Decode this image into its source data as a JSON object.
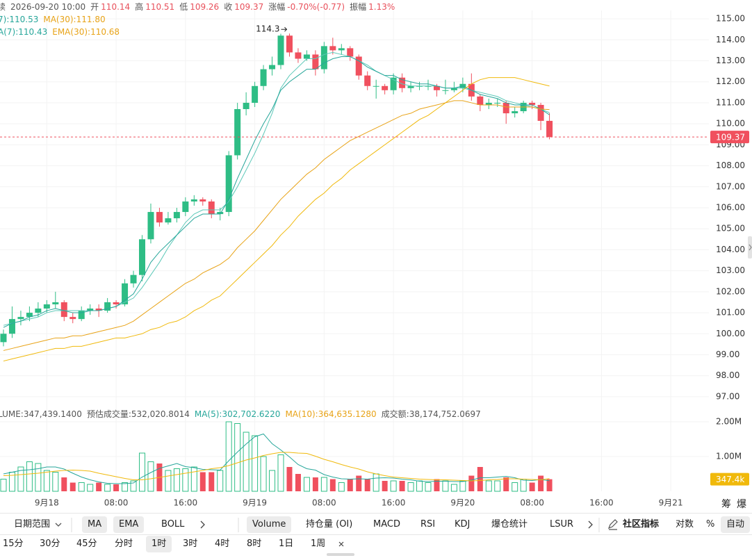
{
  "header": {
    "prefix": "续",
    "time": "2026-09-20 10:00",
    "fields": [
      {
        "label": "开",
        "value": "110.14"
      },
      {
        "label": "高",
        "value": "110.51"
      },
      {
        "label": "低",
        "value": "109.26"
      },
      {
        "label": "收",
        "value": "109.37"
      },
      {
        "label": "涨幅",
        "value": "-0.70%(-0.77)"
      },
      {
        "label": "振幅",
        "value": "1.13%"
      }
    ]
  },
  "chart_data": [
    {
      "type": "candlestick",
      "up_color": "#2ebd85",
      "down_color": "#f0505e",
      "legend": [
        [
          {
            "text": "7):110.53",
            "color": "#26a69a"
          },
          {
            "text": "MA(30):111.80",
            "color": "#e8a317"
          }
        ],
        [
          {
            "text": "A(7):110.43",
            "color": "#26a69a"
          },
          {
            "text": "EMA(30):110.68",
            "color": "#e8a317"
          }
        ]
      ],
      "open": [
        99.6,
        100.0,
        100.7,
        100.8,
        101.0,
        101.2,
        101.4,
        101.5,
        100.8,
        100.7,
        101.1,
        101.2,
        101.1,
        101.5,
        101.4,
        102.4,
        102.8,
        104.5,
        105.8,
        105.3,
        105.5,
        105.8,
        106.3,
        106.4,
        106.3,
        105.7,
        105.8,
        108.5,
        110.7,
        111.0,
        111.8,
        112.6,
        112.8,
        114.2,
        113.4,
        113.1,
        113.3,
        112.6,
        113.7,
        113.5,
        113.6,
        113.2,
        112.3,
        111.8,
        111.8,
        111.6,
        112.2,
        111.7,
        111.8,
        111.8,
        111.8,
        111.6,
        111.6,
        111.7,
        111.9,
        111.3,
        110.9,
        111.0,
        111.0,
        110.5,
        110.6,
        111.0,
        110.9,
        110.14
      ],
      "high": [
        100.2,
        101.3,
        101.1,
        101.3,
        101.5,
        101.6,
        102.0,
        101.6,
        101.0,
        101.3,
        101.4,
        101.4,
        101.7,
        101.6,
        102.6,
        103.0,
        104.7,
        106.2,
        106.0,
        105.8,
        106.0,
        106.5,
        106.6,
        106.5,
        106.4,
        106.0,
        108.7,
        111.0,
        111.5,
        112.0,
        112.8,
        113.2,
        114.29,
        114.3,
        113.6,
        113.5,
        113.5,
        113.9,
        114.1,
        113.8,
        113.7,
        113.3,
        112.5,
        112.1,
        111.9,
        112.4,
        112.4,
        112.0,
        112.0,
        112.1,
        111.9,
        112.1,
        112.0,
        112.2,
        112.4,
        111.4,
        111.2,
        111.2,
        111.1,
        110.8,
        111.1,
        111.1,
        111.0,
        110.51
      ],
      "low": [
        99.4,
        99.8,
        100.4,
        100.6,
        100.8,
        101.0,
        101.2,
        100.6,
        100.5,
        100.6,
        100.9,
        100.8,
        101.0,
        101.2,
        101.3,
        102.2,
        102.5,
        104.3,
        105.1,
        105.2,
        105.3,
        105.6,
        106.1,
        106.1,
        105.5,
        105.4,
        105.6,
        108.3,
        110.4,
        110.8,
        111.6,
        112.3,
        112.6,
        113.2,
        112.9,
        113.0,
        112.3,
        112.4,
        113.3,
        113.3,
        113.0,
        112.1,
        111.6,
        111.2,
        111.4,
        111.4,
        111.5,
        111.5,
        111.6,
        111.6,
        111.3,
        111.4,
        111.5,
        111.5,
        111.1,
        110.6,
        110.7,
        110.8,
        110.0,
        110.3,
        110.5,
        110.7,
        109.7,
        109.26
      ],
      "close": [
        100.0,
        100.7,
        100.8,
        101.0,
        101.2,
        101.4,
        101.5,
        100.8,
        100.7,
        101.1,
        101.2,
        101.1,
        101.5,
        101.4,
        102.4,
        102.8,
        104.5,
        105.8,
        105.3,
        105.5,
        105.8,
        106.3,
        106.4,
        106.3,
        105.7,
        105.8,
        108.5,
        110.7,
        111.0,
        111.8,
        112.6,
        112.8,
        114.2,
        113.4,
        113.1,
        113.3,
        112.6,
        113.7,
        113.5,
        113.6,
        113.2,
        112.3,
        111.8,
        111.8,
        111.6,
        112.2,
        111.7,
        111.8,
        111.8,
        111.8,
        111.6,
        111.6,
        111.7,
        111.9,
        111.3,
        110.9,
        111.0,
        111.0,
        110.5,
        110.6,
        111.0,
        110.9,
        110.14,
        109.37
      ],
      "series": [
        {
          "color": "#5cc8b8",
          "values": [
            100.4,
            100.5,
            100.6,
            100.7,
            100.8,
            101.0,
            101.1,
            101.1,
            101.1,
            101.1,
            101.1,
            101.1,
            101.2,
            101.3,
            101.5,
            101.7,
            102.2,
            102.8,
            103.4,
            104.1,
            104.7,
            105.3,
            105.7,
            105.9,
            105.9,
            105.9,
            106.3,
            107.0,
            107.8,
            108.6,
            109.5,
            110.5,
            111.7,
            112.3,
            112.7,
            113.1,
            113.1,
            113.3,
            113.4,
            113.3,
            113.2,
            113.0,
            112.8,
            112.5,
            112.3,
            112.1,
            111.9,
            111.8,
            111.8,
            111.8,
            111.8,
            111.7,
            111.7,
            111.7,
            111.6,
            111.5,
            111.4,
            111.3,
            111.1,
            111.0,
            110.9,
            110.8,
            110.7,
            110.53
          ]
        },
        {
          "color": "#26a69a",
          "values": [
            100.3,
            100.5,
            100.6,
            100.8,
            100.9,
            101.1,
            101.2,
            101.1,
            101.0,
            101.0,
            101.1,
            101.1,
            101.2,
            101.3,
            101.6,
            101.9,
            102.6,
            103.4,
            103.9,
            104.3,
            104.7,
            105.1,
            105.5,
            105.7,
            105.7,
            105.7,
            106.4,
            107.4,
            108.3,
            109.2,
            110.0,
            110.7,
            111.6,
            112.0,
            112.3,
            112.6,
            112.6,
            112.9,
            113.1,
            113.2,
            113.2,
            113.0,
            112.7,
            112.5,
            112.3,
            112.3,
            112.1,
            112.0,
            111.9,
            111.9,
            111.8,
            111.7,
            111.7,
            111.8,
            111.6,
            111.4,
            111.3,
            111.2,
            111.0,
            110.9,
            110.9,
            110.9,
            110.7,
            110.43
          ]
        },
        {
          "color": "#f0b90b",
          "values": [
            98.7,
            98.8,
            98.9,
            99.0,
            99.1,
            99.2,
            99.3,
            99.3,
            99.4,
            99.4,
            99.5,
            99.6,
            99.7,
            99.8,
            99.8,
            99.9,
            100.0,
            100.2,
            100.3,
            100.5,
            100.6,
            100.8,
            101.1,
            101.3,
            101.6,
            101.8,
            102.2,
            102.6,
            103.0,
            103.4,
            103.8,
            104.2,
            104.7,
            105.1,
            105.6,
            106.0,
            106.4,
            106.7,
            107.1,
            107.4,
            107.8,
            108.1,
            108.4,
            108.7,
            109.0,
            109.3,
            109.6,
            109.9,
            110.2,
            110.4,
            110.7,
            111.0,
            111.3,
            111.6,
            111.9,
            112.1,
            112.2,
            112.2,
            112.2,
            112.2,
            112.1,
            112.0,
            111.9,
            111.8
          ]
        },
        {
          "color": "#e8a317",
          "values": [
            99.2,
            99.3,
            99.4,
            99.5,
            99.6,
            99.7,
            99.8,
            99.8,
            99.9,
            99.9,
            100.0,
            100.1,
            100.2,
            100.3,
            100.4,
            100.6,
            100.9,
            101.2,
            101.5,
            101.8,
            102.1,
            102.4,
            102.6,
            102.9,
            103.1,
            103.3,
            103.6,
            104.1,
            104.5,
            104.9,
            105.4,
            105.9,
            106.4,
            106.8,
            107.2,
            107.6,
            107.9,
            108.3,
            108.6,
            108.9,
            109.2,
            109.4,
            109.6,
            109.8,
            110.0,
            110.2,
            110.4,
            110.5,
            110.7,
            110.8,
            110.9,
            111.0,
            111.1,
            111.1,
            111.0,
            110.9,
            110.9,
            110.9,
            110.8,
            110.8,
            110.8,
            110.8,
            110.7,
            110.68
          ]
        }
      ],
      "xlim": [
        -0.4,
        81.4
      ],
      "xticks": [
        {
          "value": 5,
          "label": "9月18"
        },
        {
          "value": 13,
          "label": "08:00"
        },
        {
          "value": 21,
          "label": "16:00"
        },
        {
          "value": 29,
          "label": "9月19"
        },
        {
          "value": 37,
          "label": "08:00"
        },
        {
          "value": 45,
          "label": "16:00"
        },
        {
          "value": 53,
          "label": "9月20"
        },
        {
          "value": 61,
          "label": "08:00"
        },
        {
          "value": 69,
          "label": "16:00"
        },
        {
          "value": 77,
          "label": "9月21"
        }
      ],
      "ylim": [
        96.6,
        115.4
      ],
      "yticks": [
        {
          "value": 97,
          "label": "97.00"
        },
        {
          "value": 98,
          "label": "98.00"
        },
        {
          "value": 99,
          "label": "99.00"
        },
        {
          "value": 100,
          "label": "100.00"
        },
        {
          "value": 101,
          "label": "101.00"
        },
        {
          "value": 102,
          "label": "102.00"
        },
        {
          "value": 103,
          "label": "103.00"
        },
        {
          "value": 104,
          "label": "104.00"
        },
        {
          "value": 105,
          "label": "105.00"
        },
        {
          "value": 106,
          "label": "106.00"
        },
        {
          "value": 107,
          "label": "107.00"
        },
        {
          "value": 108,
          "label": "108.00"
        },
        {
          "value": 109,
          "label": "109.00"
        },
        {
          "value": 110,
          "label": "110.00"
        },
        {
          "value": 111,
          "label": "111.00"
        },
        {
          "value": 112,
          "label": "112.00"
        },
        {
          "value": 113,
          "label": "113.00"
        },
        {
          "value": 114,
          "label": "114.00"
        },
        {
          "value": 115,
          "label": "115.00"
        }
      ],
      "grid": true
    },
    {
      "type": "bar",
      "legend": [
        {
          "text": "LUME:347,439.1400",
          "color": "#555555"
        },
        {
          "text": "预估成交量:532,020.8014",
          "color": "#555555"
        },
        {
          "text": "MA(5):302,702.6220",
          "color": "#26a69a"
        },
        {
          "text": "MA(10):364,635.1280",
          "color": "#e8a317"
        },
        {
          "text": "成交额:38,174,752.0697",
          "color": "#555555"
        }
      ],
      "values": [
        350000,
        550000,
        700000,
        850000,
        800000,
        600000,
        550000,
        400000,
        250000,
        250000,
        200000,
        250000,
        200000,
        200000,
        250000,
        300000,
        1100000,
        850000,
        800000,
        600000,
        650000,
        650000,
        700000,
        550000,
        550000,
        600000,
        2000000,
        1950000,
        1700000,
        1600000,
        1000000,
        600000,
        1050000,
        700000,
        500000,
        400000,
        400000,
        400000,
        350000,
        250000,
        350000,
        450000,
        350000,
        500000,
        300000,
        300000,
        300000,
        250000,
        300000,
        250000,
        350000,
        300000,
        200000,
        300000,
        450000,
        700000,
        300000,
        300000,
        400000,
        250000,
        350000,
        250000,
        450000,
        347439.14
      ],
      "current_label": "347.4k",
      "series": [
        {
          "color": "#26a69a",
          "values": [
            500000,
            550000,
            600000,
            620000,
            650000,
            700000,
            700000,
            640000,
            520000,
            410000,
            330000,
            270000,
            230000,
            220000,
            220000,
            240000,
            410000,
            540000,
            660000,
            730000,
            800000,
            710000,
            680000,
            630000,
            620000,
            610000,
            880000,
            1130000,
            1360000,
            1570000,
            1650000,
            1370000,
            1190000,
            990000,
            770000,
            650000,
            610000,
            480000,
            410000,
            360000,
            350000,
            360000,
            350000,
            380000,
            390000,
            380000,
            350000,
            330000,
            290000,
            280000,
            290000,
            290000,
            280000,
            280000,
            320000,
            390000,
            390000,
            410000,
            430000,
            390000,
            320000,
            310000,
            340000,
            302702.622
          ]
        },
        {
          "color": "#f0b90b",
          "values": [
            450000,
            460000,
            480000,
            500000,
            520000,
            550000,
            580000,
            600000,
            610000,
            600000,
            580000,
            520000,
            470000,
            420000,
            370000,
            330000,
            330000,
            360000,
            400000,
            440000,
            480000,
            520000,
            560000,
            600000,
            650000,
            680000,
            740000,
            820000,
            900000,
            960000,
            1030000,
            1080000,
            1120000,
            1120000,
            1100000,
            1090000,
            1010000,
            920000,
            850000,
            770000,
            700000,
            640000,
            560000,
            500000,
            450000,
            410000,
            390000,
            370000,
            350000,
            340000,
            330000,
            330000,
            320000,
            310000,
            300000,
            310000,
            330000,
            340000,
            360000,
            360000,
            350000,
            340000,
            330000,
            364635.128
          ]
        }
      ],
      "ylim": [
        0,
        2000000
      ],
      "yticks": [
        {
          "value": 1000000,
          "label": "1.00M"
        },
        {
          "value": 2000000,
          "label": "2.00M"
        }
      ]
    }
  ],
  "side": [
    "筹",
    "爆"
  ],
  "toolbar": {
    "row1": [
      "日期范围",
      "MA",
      "EMA",
      "BOLL",
      "Volume",
      "持仓量 (OI)",
      "MACD",
      "RSI",
      "KDJ",
      "爆仓统计",
      "LSUR",
      "社区指标",
      "对数",
      "%",
      "自动"
    ],
    "row2": [
      "15分",
      "30分",
      "45分",
      "分时",
      "1时",
      "3时",
      "4时",
      "8时",
      "1日",
      "1周"
    ]
  }
}
